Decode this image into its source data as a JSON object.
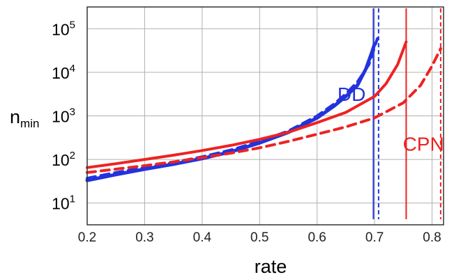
{
  "chart_data": {
    "type": "line",
    "title": "",
    "xlabel": "rate",
    "ylabel": {
      "base": "n",
      "sub": "min"
    },
    "xlim": [
      0.2,
      0.82
    ],
    "ylim_log10": [
      0.5,
      5.5
    ],
    "yscale": "log",
    "grid": true,
    "x_ticks": [
      "0.2",
      "0.3",
      "0.4",
      "0.5",
      "0.6",
      "0.7",
      "0.8"
    ],
    "y_ticks": [
      {
        "base": "10",
        "exp": "1",
        "value": 10
      },
      {
        "base": "10",
        "exp": "2",
        "value": 100
      },
      {
        "base": "10",
        "exp": "3",
        "value": 1000
      },
      {
        "base": "10",
        "exp": "4",
        "value": 10000
      },
      {
        "base": "10",
        "exp": "5",
        "value": 100000
      }
    ],
    "colors": {
      "DD": "#2233dd",
      "CPN": "#ee2222",
      "grid": "#b0b0b0"
    },
    "annotations": [
      {
        "text": "DD",
        "color": "#2233dd",
        "x": 0.66,
        "y": 2200
      },
      {
        "text": "CPN",
        "color": "#ee2222",
        "x": 0.785,
        "y": 160
      }
    ],
    "series": [
      {
        "group": "DD",
        "color": "#2233dd",
        "style": "solid",
        "width": 5,
        "points": [
          [
            0.2,
            33
          ],
          [
            0.25,
            45
          ],
          [
            0.3,
            60
          ],
          [
            0.35,
            78
          ],
          [
            0.4,
            105
          ],
          [
            0.45,
            150
          ],
          [
            0.5,
            240
          ],
          [
            0.55,
            420
          ],
          [
            0.6,
            900
          ],
          [
            0.63,
            1700
          ],
          [
            0.65,
            2800
          ],
          [
            0.67,
            5000
          ],
          [
            0.685,
            12000
          ],
          [
            0.695,
            28000
          ],
          [
            0.7,
            45000
          ]
        ]
      },
      {
        "group": "DD",
        "color": "#2233dd",
        "style": "dashed",
        "width": 4,
        "points": [
          [
            0.2,
            37
          ],
          [
            0.25,
            50
          ],
          [
            0.3,
            65
          ],
          [
            0.35,
            85
          ],
          [
            0.4,
            115
          ],
          [
            0.45,
            165
          ],
          [
            0.5,
            260
          ],
          [
            0.55,
            450
          ],
          [
            0.6,
            1000
          ],
          [
            0.63,
            1900
          ],
          [
            0.65,
            3200
          ],
          [
            0.67,
            6000
          ],
          [
            0.69,
            15000
          ],
          [
            0.705,
            60000
          ]
        ]
      },
      {
        "group": "CPN",
        "color": "#ee2222",
        "style": "solid",
        "width": 4,
        "points": [
          [
            0.2,
            65
          ],
          [
            0.25,
            80
          ],
          [
            0.3,
            100
          ],
          [
            0.35,
            125
          ],
          [
            0.4,
            160
          ],
          [
            0.45,
            210
          ],
          [
            0.5,
            290
          ],
          [
            0.55,
            420
          ],
          [
            0.6,
            700
          ],
          [
            0.65,
            1200
          ],
          [
            0.7,
            2800
          ],
          [
            0.72,
            5500
          ],
          [
            0.74,
            15000
          ],
          [
            0.755,
            50000
          ]
        ]
      },
      {
        "group": "CPN",
        "color": "#ee2222",
        "style": "dashed",
        "width": 4,
        "points": [
          [
            0.2,
            50
          ],
          [
            0.25,
            60
          ],
          [
            0.3,
            72
          ],
          [
            0.35,
            88
          ],
          [
            0.4,
            110
          ],
          [
            0.45,
            140
          ],
          [
            0.5,
            185
          ],
          [
            0.55,
            260
          ],
          [
            0.6,
            380
          ],
          [
            0.65,
            560
          ],
          [
            0.7,
            900
          ],
          [
            0.75,
            2000
          ],
          [
            0.78,
            5000
          ],
          [
            0.8,
            14000
          ],
          [
            0.815,
            35000
          ]
        ]
      }
    ],
    "asymptotes": [
      {
        "group": "DD",
        "x": 0.698,
        "color": "#2233dd",
        "style": "solid"
      },
      {
        "group": "DD",
        "x": 0.707,
        "color": "#2233dd",
        "style": "dashed"
      },
      {
        "group": "CPN",
        "x": 0.755,
        "color": "#ee2222",
        "style": "solid"
      },
      {
        "group": "CPN",
        "x": 0.815,
        "color": "#ee2222",
        "style": "dashed"
      }
    ]
  }
}
